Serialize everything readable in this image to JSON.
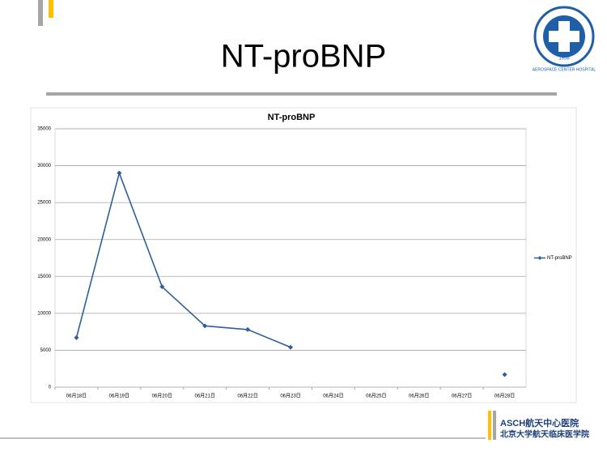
{
  "slide": {
    "title": "NT-proBNP",
    "logo_year": "1958",
    "logo_ring": "AEROSPACE CENTER HOSPITAL",
    "footer_lines": [
      "ASCH航天中心医院",
      "北京大学航天临床医学院"
    ]
  },
  "chart_data": {
    "type": "line",
    "title": "NT-proBNP",
    "categories": [
      "06月18日",
      "06月19日",
      "06月20日",
      "06月21日",
      "06月22日",
      "06月23日",
      "06月24日",
      "06月25日",
      "06月26日",
      "06月27日",
      "06月28日"
    ],
    "series": [
      {
        "name": "NT-proBNP",
        "color": "#2f5f98",
        "values": [
          6700,
          29000,
          13600,
          8300,
          7800,
          5400,
          null,
          null,
          null,
          null,
          1700
        ]
      }
    ],
    "ylim": [
      0,
      35000
    ],
    "yticks": [
      0,
      5000,
      10000,
      15000,
      20000,
      25000,
      30000,
      35000
    ],
    "grid": true,
    "legend": "right"
  }
}
